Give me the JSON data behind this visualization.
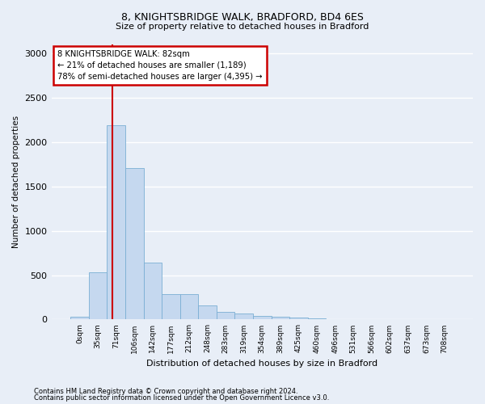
{
  "title1": "8, KNIGHTSBRIDGE WALK, BRADFORD, BD4 6ES",
  "title2": "Size of property relative to detached houses in Bradford",
  "xlabel": "Distribution of detached houses by size in Bradford",
  "ylabel": "Number of detached properties",
  "footnote1": "Contains HM Land Registry data © Crown copyright and database right 2024.",
  "footnote2": "Contains public sector information licensed under the Open Government Licence v3.0.",
  "bar_labels": [
    "0sqm",
    "35sqm",
    "71sqm",
    "106sqm",
    "142sqm",
    "177sqm",
    "212sqm",
    "248sqm",
    "283sqm",
    "319sqm",
    "354sqm",
    "389sqm",
    "425sqm",
    "460sqm",
    "496sqm",
    "531sqm",
    "566sqm",
    "602sqm",
    "637sqm",
    "673sqm",
    "708sqm"
  ],
  "bar_values": [
    30,
    530,
    2185,
    1710,
    640,
    285,
    285,
    155,
    90,
    65,
    40,
    30,
    25,
    10,
    5,
    0,
    0,
    0,
    0,
    0,
    0
  ],
  "bar_color": "#c5d8ef",
  "bar_edge_color": "#7aafd4",
  "vline_color": "#cc0000",
  "annotation_box_color": "#ffffff",
  "annotation_box_edge": "#cc0000",
  "ylim": [
    0,
    3100
  ],
  "background_color": "#e8eef7",
  "grid_color": "#ffffff"
}
